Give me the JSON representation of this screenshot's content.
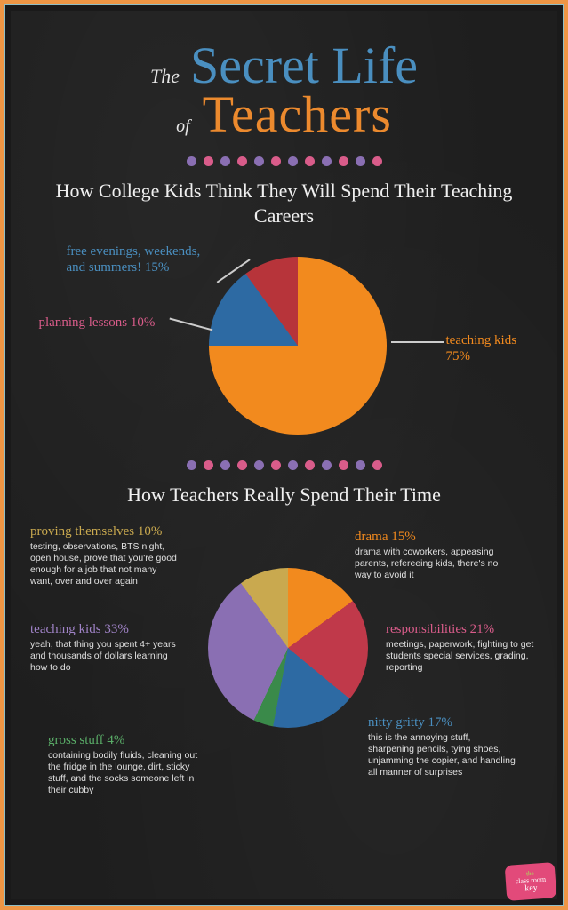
{
  "title": {
    "the": "The",
    "secret": "Secret Life",
    "of": "of",
    "teachers": "Teachers"
  },
  "dots": {
    "count": 12,
    "colors": [
      "#8a6fb3",
      "#d95c8a"
    ]
  },
  "section1": {
    "heading": "How College Kids Think They Will Spend Their Teaching Careers",
    "pie": {
      "type": "pie",
      "size": 200,
      "background": "#1e1e1e",
      "slices": [
        {
          "label": "teaching kids 75%",
          "value": 75,
          "color": "#f28a1e",
          "label_color": "#f28a1e"
        },
        {
          "label": "free evenings, weekends,\nand summers! 15%",
          "value": 15,
          "color": "#2d6aa3",
          "label_color": "#4a8fc0"
        },
        {
          "label": "planning lessons 10%",
          "value": 10,
          "color": "#b7343a",
          "label_color": "#d95c8a"
        }
      ]
    }
  },
  "section2": {
    "heading": "How Teachers Really Spend Their Time",
    "pie": {
      "type": "pie",
      "size": 180,
      "background": "#1e1e1e",
      "slices": [
        {
          "label": "drama 15%",
          "value": 15,
          "color": "#f28a1e",
          "label_color": "#f28a1e",
          "desc": "drama with coworkers, appeasing parents, refereeing kids, there's no way to avoid it"
        },
        {
          "label": "responsibilities 21%",
          "value": 21,
          "color": "#c0394a",
          "label_color": "#d95c8a",
          "desc": "meetings, paperwork, fighting to get students special services, grading, reporting"
        },
        {
          "label": "nitty gritty 17%",
          "value": 17,
          "color": "#2d6aa3",
          "label_color": "#4a8fc0",
          "desc": "this is the annoying stuff, sharpening pencils, tying shoes, unjamming the copier, and handling all manner of surprises"
        },
        {
          "label": "gross stuff 4%",
          "value": 4,
          "color": "#3a8a4a",
          "label_color": "#5aad68",
          "desc": "containing bodily fluids, cleaning out the fridge in the lounge, dirt, sticky stuff, and the socks someone left in their cubby"
        },
        {
          "label": "teaching kids 33%",
          "value": 33,
          "color": "#8a6fb3",
          "label_color": "#a083c7",
          "desc": "yeah, that thing you spent 4+ years and thousands of dollars learning how to do"
        },
        {
          "label": "proving themselves 10%",
          "value": 10,
          "color": "#c9a94f",
          "label_color": "#c9a94f",
          "desc": "testing, observations, BTS night, open house, prove that you're good enough for a job that not many want, over and over again"
        }
      ]
    }
  },
  "logo": {
    "the": "the",
    "mid": "class room",
    "key": "key"
  }
}
